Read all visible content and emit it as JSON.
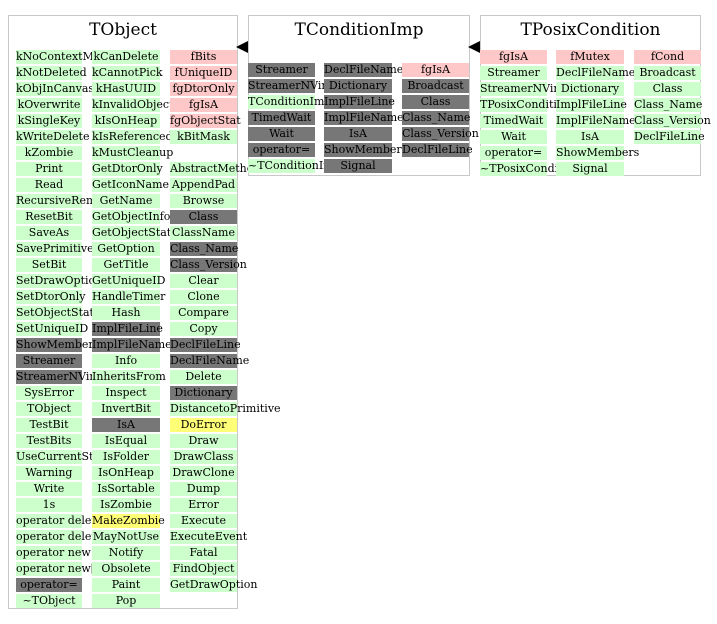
{
  "colors": {
    "pink": "#ffc8c8",
    "green": "#ccffcc",
    "gray": "#777777",
    "yellow": "#ffff77",
    "border": "#c8c8c8"
  },
  "classes": [
    {
      "name": "TObject",
      "columns": [
        [
          {
            "t": "kNoContextMenu",
            "c": "green"
          },
          {
            "t": "kNotDeleted",
            "c": "green"
          },
          {
            "t": "kObjInCanvas",
            "c": "green"
          },
          {
            "t": "kOverwrite",
            "c": "green"
          },
          {
            "t": "kSingleKey",
            "c": "green"
          },
          {
            "t": "kWriteDelete",
            "c": "green"
          },
          {
            "t": "kZombie",
            "c": "green"
          },
          {
            "t": "Print",
            "c": "green"
          },
          {
            "t": "Read",
            "c": "green"
          },
          {
            "t": "RecursiveRemove",
            "c": "green"
          },
          {
            "t": "ResetBit",
            "c": "green"
          },
          {
            "t": "SaveAs",
            "c": "green"
          },
          {
            "t": "SavePrimitive",
            "c": "green"
          },
          {
            "t": "SetBit",
            "c": "green"
          },
          {
            "t": "SetDrawOption",
            "c": "green"
          },
          {
            "t": "SetDtorOnly",
            "c": "green"
          },
          {
            "t": "SetObjectStat",
            "c": "green"
          },
          {
            "t": "SetUniqueID",
            "c": "green"
          },
          {
            "t": "ShowMembers",
            "c": "gray"
          },
          {
            "t": "Streamer",
            "c": "gray"
          },
          {
            "t": "StreamerNVirtual",
            "c": "gray"
          },
          {
            "t": "SysError",
            "c": "green"
          },
          {
            "t": "TObject",
            "c": "green"
          },
          {
            "t": "TestBit",
            "c": "green"
          },
          {
            "t": "TestBits",
            "c": "green"
          },
          {
            "t": "UseCurrentStyle",
            "c": "green"
          },
          {
            "t": "Warning",
            "c": "green"
          },
          {
            "t": "Write",
            "c": "green"
          },
          {
            "t": "1s",
            "c": "green"
          },
          {
            "t": "operator delete",
            "c": "green"
          },
          {
            "t": "operator delete[]",
            "c": "green"
          },
          {
            "t": "operator new",
            "c": "green"
          },
          {
            "t": "operator new[]",
            "c": "green"
          },
          {
            "t": "operator=",
            "c": "gray"
          },
          {
            "t": "~TObject",
            "c": "green"
          }
        ],
        [
          {
            "t": "kCanDelete",
            "c": "green"
          },
          {
            "t": "kCannotPick",
            "c": "green"
          },
          {
            "t": "kHasUUID",
            "c": "green"
          },
          {
            "t": "kInvalidObject",
            "c": "green"
          },
          {
            "t": "kIsOnHeap",
            "c": "green"
          },
          {
            "t": "kIsReferenced",
            "c": "green"
          },
          {
            "t": "kMustCleanup",
            "c": "green"
          },
          {
            "t": "GetDtorOnly",
            "c": "green"
          },
          {
            "t": "GetIconName",
            "c": "green"
          },
          {
            "t": "GetName",
            "c": "green"
          },
          {
            "t": "GetObjectInfo",
            "c": "green"
          },
          {
            "t": "GetObjectStat",
            "c": "green"
          },
          {
            "t": "GetOption",
            "c": "green"
          },
          {
            "t": "GetTitle",
            "c": "green"
          },
          {
            "t": "GetUniqueID",
            "c": "green"
          },
          {
            "t": "HandleTimer",
            "c": "green"
          },
          {
            "t": "Hash",
            "c": "green"
          },
          {
            "t": "ImplFileLine",
            "c": "gray"
          },
          {
            "t": "ImplFileName",
            "c": "gray"
          },
          {
            "t": "Info",
            "c": "green"
          },
          {
            "t": "InheritsFrom",
            "c": "green"
          },
          {
            "t": "Inspect",
            "c": "green"
          },
          {
            "t": "InvertBit",
            "c": "green"
          },
          {
            "t": "IsA",
            "c": "gray"
          },
          {
            "t": "IsEqual",
            "c": "green"
          },
          {
            "t": "IsFolder",
            "c": "green"
          },
          {
            "t": "IsOnHeap",
            "c": "green"
          },
          {
            "t": "IsSortable",
            "c": "green"
          },
          {
            "t": "IsZombie",
            "c": "green"
          },
          {
            "t": "MakeZombie",
            "c": "yellow"
          },
          {
            "t": "MayNotUse",
            "c": "green"
          },
          {
            "t": "Notify",
            "c": "green"
          },
          {
            "t": "Obsolete",
            "c": "green"
          },
          {
            "t": "Paint",
            "c": "green"
          },
          {
            "t": "Pop",
            "c": "green"
          }
        ],
        [
          {
            "t": "fBits",
            "c": "pink"
          },
          {
            "t": "fUniqueID",
            "c": "pink"
          },
          {
            "t": "fgDtorOnly",
            "c": "pink"
          },
          {
            "t": "fgIsA",
            "c": "pink"
          },
          {
            "t": "fgObjectStat",
            "c": "pink"
          },
          {
            "t": "kBitMask",
            "c": "green"
          },
          {
            "t": "",
            "c": "none"
          },
          {
            "t": "AbstractMethod",
            "c": "green"
          },
          {
            "t": "AppendPad",
            "c": "green"
          },
          {
            "t": "Browse",
            "c": "green"
          },
          {
            "t": "Class",
            "c": "gray"
          },
          {
            "t": "ClassName",
            "c": "green"
          },
          {
            "t": "Class_Name",
            "c": "gray"
          },
          {
            "t": "Class_Version",
            "c": "gray"
          },
          {
            "t": "Clear",
            "c": "green"
          },
          {
            "t": "Clone",
            "c": "green"
          },
          {
            "t": "Compare",
            "c": "green"
          },
          {
            "t": "Copy",
            "c": "green"
          },
          {
            "t": "DeclFileLine",
            "c": "gray"
          },
          {
            "t": "DeclFileName",
            "c": "gray"
          },
          {
            "t": "Delete",
            "c": "green"
          },
          {
            "t": "Dictionary",
            "c": "gray"
          },
          {
            "t": "DistancetoPrimitive",
            "c": "green"
          },
          {
            "t": "DoError",
            "c": "yellow"
          },
          {
            "t": "Draw",
            "c": "green"
          },
          {
            "t": "DrawClass",
            "c": "green"
          },
          {
            "t": "DrawClone",
            "c": "green"
          },
          {
            "t": "Dump",
            "c": "green"
          },
          {
            "t": "Error",
            "c": "green"
          },
          {
            "t": "Execute",
            "c": "green"
          },
          {
            "t": "ExecuteEvent",
            "c": "green"
          },
          {
            "t": "Fatal",
            "c": "green"
          },
          {
            "t": "FindObject",
            "c": "green"
          },
          {
            "t": "GetDrawOption",
            "c": "green"
          }
        ]
      ]
    },
    {
      "name": "TConditionImp",
      "columns": [
        [
          {
            "t": "Streamer",
            "c": "gray"
          },
          {
            "t": "StreamerNVirtual",
            "c": "gray"
          },
          {
            "t": "TConditionImp",
            "c": "green"
          },
          {
            "t": "TimedWait",
            "c": "gray"
          },
          {
            "t": "Wait",
            "c": "gray"
          },
          {
            "t": "operator=",
            "c": "gray"
          },
          {
            "t": "~TConditionImp",
            "c": "green"
          }
        ],
        [
          {
            "t": "DeclFileName",
            "c": "gray"
          },
          {
            "t": "Dictionary",
            "c": "gray"
          },
          {
            "t": "ImplFileLine",
            "c": "gray"
          },
          {
            "t": "ImplFileName",
            "c": "gray"
          },
          {
            "t": "IsA",
            "c": "gray"
          },
          {
            "t": "ShowMembers",
            "c": "gray"
          },
          {
            "t": "Signal",
            "c": "gray"
          }
        ],
        [
          {
            "t": "fgIsA",
            "c": "pink"
          },
          {
            "t": "Broadcast",
            "c": "gray"
          },
          {
            "t": "Class",
            "c": "gray"
          },
          {
            "t": "Class_Name",
            "c": "gray"
          },
          {
            "t": "Class_Version",
            "c": "gray"
          },
          {
            "t": "DeclFileLine",
            "c": "gray"
          }
        ]
      ]
    },
    {
      "name": "TPosixCondition",
      "columns": [
        [
          {
            "t": "fgIsA",
            "c": "pink"
          },
          {
            "t": "Streamer",
            "c": "green"
          },
          {
            "t": "StreamerNVirtual",
            "c": "green"
          },
          {
            "t": "TPosixCondition",
            "c": "green"
          },
          {
            "t": "TimedWait",
            "c": "green"
          },
          {
            "t": "Wait",
            "c": "green"
          },
          {
            "t": "operator=",
            "c": "green"
          },
          {
            "t": "~TPosixCondition",
            "c": "green"
          }
        ],
        [
          {
            "t": "fMutex",
            "c": "pink"
          },
          {
            "t": "DeclFileName",
            "c": "green"
          },
          {
            "t": "Dictionary",
            "c": "green"
          },
          {
            "t": "ImplFileLine",
            "c": "green"
          },
          {
            "t": "ImplFileName",
            "c": "green"
          },
          {
            "t": "IsA",
            "c": "green"
          },
          {
            "t": "ShowMembers",
            "c": "green"
          },
          {
            "t": "Signal",
            "c": "green"
          }
        ],
        [
          {
            "t": "fCond",
            "c": "pink"
          },
          {
            "t": "Broadcast",
            "c": "green"
          },
          {
            "t": "Class",
            "c": "green"
          },
          {
            "t": "Class_Name",
            "c": "green"
          },
          {
            "t": "Class_Version",
            "c": "green"
          },
          {
            "t": "DeclFileLine",
            "c": "green"
          }
        ]
      ]
    }
  ]
}
